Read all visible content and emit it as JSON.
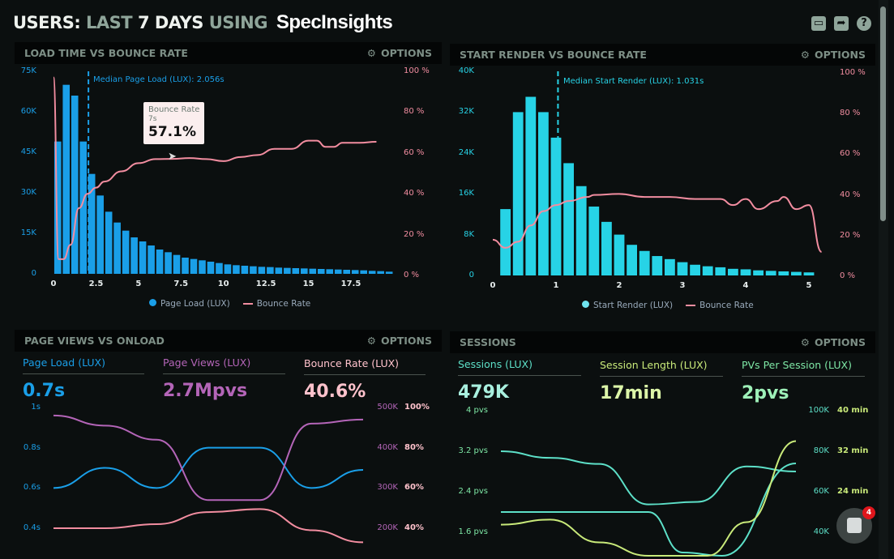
{
  "header": {
    "title_users": "USERS:",
    "title_last": "LAST",
    "title_7days": "7 DAYS",
    "title_using": "USING",
    "brand": "SpecInsights",
    "icons": [
      "monitor-icon",
      "share-icon",
      "help-icon"
    ]
  },
  "scrollbar": {
    "position": 0,
    "visible_fraction": 0.4
  },
  "chat_widget": {
    "badge": "4",
    "icon": "chat-icon"
  },
  "colors": {
    "blue": "#1a9fe8",
    "cyan": "#27d3e6",
    "pink": "#f28da0",
    "purple": "#b465b8",
    "lightpink": "#ffc2cc",
    "teal": "#5de0c8",
    "lime": "#c9ea7a",
    "green": "#7ee8a6"
  },
  "panels": [
    {
      "title": "LOAD TIME VS BOUNCE RATE",
      "options": "OPTIONS"
    },
    {
      "title": "START RENDER VS BOUNCE RATE",
      "options": "OPTIONS"
    },
    {
      "title": "PAGE VIEWS VS ONLOAD",
      "options": "OPTIONS",
      "kpis": [
        {
          "label": "Page Load (LUX)",
          "value": "0.7s"
        },
        {
          "label": "Page Views (LUX)",
          "value": "2.7Mpvs"
        },
        {
          "label": "Bounce Rate (LUX)",
          "value": "40.6%"
        }
      ]
    },
    {
      "title": "SESSIONS",
      "options": "OPTIONS",
      "kpis": [
        {
          "label": "Sessions (LUX)",
          "value": "479K"
        },
        {
          "label": "Session Length (LUX)",
          "value": "17min"
        },
        {
          "label": "PVs Per Session (LUX)",
          "value": "2pvs"
        }
      ]
    }
  ],
  "tooltip": {
    "title": "Bounce Rate",
    "x": "7s",
    "value": "57.1%"
  },
  "chart_data": [
    {
      "type": "bar",
      "annotation": "Median Page Load (LUX): 2.056s",
      "median": 2.056,
      "xticks": [
        "0",
        "2.5",
        "5",
        "7.5",
        "10",
        "12.5",
        "15",
        "17.5"
      ],
      "xlim": [
        0,
        19.75
      ],
      "yticks": [
        "0",
        "15K",
        "30K",
        "45K",
        "60K",
        "75K"
      ],
      "ylim": [
        0,
        75000
      ],
      "y2ticks": [
        "0 %",
        "20 %",
        "40 %",
        "60 %",
        "80 %",
        "100 %"
      ],
      "y2lim": [
        0,
        100
      ],
      "legend": [
        "Page Load (LUX)",
        "Bounce Rate"
      ],
      "bars": {
        "name": "Page Load (LUX)",
        "x_start": 0,
        "x_step": 0.5,
        "values": [
          49000,
          70000,
          66000,
          49000,
          37000,
          29000,
          23000,
          19000,
          16000,
          13500,
          12000,
          10500,
          9000,
          8000,
          7000,
          6000,
          5500,
          5000,
          4500,
          4000,
          3500,
          3200,
          3000,
          2800,
          2600,
          2500,
          2300,
          2200,
          2100,
          2000,
          1900,
          1800,
          1700,
          1600,
          1500,
          1400,
          1300,
          1100,
          1000,
          800
        ]
      },
      "line": {
        "name": "Bounce Rate",
        "points": [
          [
            0,
            97
          ],
          [
            0.3,
            8
          ],
          [
            0.6,
            8
          ],
          [
            1,
            15
          ],
          [
            1.5,
            33
          ],
          [
            2,
            40
          ],
          [
            2.5,
            43
          ],
          [
            3,
            46
          ],
          [
            4,
            51
          ],
          [
            5,
            55
          ],
          [
            6,
            57
          ],
          [
            7,
            57.1
          ],
          [
            8,
            57.5
          ],
          [
            9,
            57
          ],
          [
            10,
            56
          ],
          [
            11,
            58
          ],
          [
            12,
            59
          ],
          [
            13,
            62
          ],
          [
            14,
            62
          ],
          [
            15,
            66
          ],
          [
            15.5,
            66
          ],
          [
            16,
            63
          ],
          [
            16.5,
            63
          ],
          [
            17,
            65
          ],
          [
            18,
            65
          ],
          [
            19,
            65.5
          ]
        ]
      }
    },
    {
      "type": "bar",
      "annotation": "Median Start Render (LUX): 1.031s",
      "median": 1.031,
      "xticks": [
        "0",
        "1",
        "2",
        "3",
        "4",
        "5"
      ],
      "xlim": [
        0,
        5.3
      ],
      "yticks": [
        "0",
        "8K",
        "16K",
        "24K",
        "32K",
        "40K"
      ],
      "ylim": [
        0,
        40000
      ],
      "y2ticks": [
        "0 %",
        "20 %",
        "40 %",
        "60 %",
        "80 %",
        "100 %"
      ],
      "y2lim": [
        0,
        100
      ],
      "legend": [
        "Start Render (LUX)",
        "Bounce Rate"
      ],
      "bars": {
        "name": "Start Render (LUX)",
        "x_start": 0.2,
        "x_step": 0.2,
        "values": [
          13000,
          32000,
          35000,
          32000,
          27000,
          22000,
          17500,
          13500,
          10500,
          8000,
          6000,
          4800,
          3800,
          3200,
          2600,
          2100,
          1800,
          1600,
          1300,
          1200,
          1000,
          900,
          800,
          700,
          600
        ]
      },
      "line": {
        "name": "Bounce Rate",
        "points": [
          [
            0,
            18
          ],
          [
            0.2,
            14
          ],
          [
            0.4,
            17
          ],
          [
            0.6,
            25
          ],
          [
            0.8,
            32
          ],
          [
            1,
            35
          ],
          [
            1.2,
            37
          ],
          [
            1.5,
            39
          ],
          [
            1.6,
            40
          ],
          [
            2,
            40.5
          ],
          [
            2.4,
            39
          ],
          [
            2.8,
            39
          ],
          [
            3.2,
            38
          ],
          [
            3.6,
            38
          ],
          [
            3.8,
            35
          ],
          [
            4,
            38
          ],
          [
            4.2,
            33
          ],
          [
            4.5,
            37
          ],
          [
            4.6,
            39
          ],
          [
            4.8,
            33
          ],
          [
            5,
            35
          ],
          [
            5.2,
            12
          ]
        ]
      }
    },
    {
      "type": "line",
      "xlim": [
        0,
        6
      ],
      "yticks": [
        "0.4s",
        "0.6s",
        "0.8s",
        "1s"
      ],
      "ylim": [
        0.4,
        1.0
      ],
      "y2ticks": [
        "200K",
        "300K",
        "400K",
        "500K"
      ],
      "y2lim": [
        200000,
        500000
      ],
      "y3ticks": [
        "40%",
        "60%",
        "80%",
        "100%"
      ],
      "y3lim": [
        40,
        100
      ],
      "series": [
        {
          "name": "Page Load (LUX)",
          "axis": "y",
          "values": [
            [
              0,
              0.6
            ],
            [
              1,
              0.7
            ],
            [
              2,
              0.6
            ],
            [
              3,
              0.8
            ],
            [
              4,
              0.8
            ],
            [
              5,
              0.6
            ],
            [
              6,
              0.69
            ]
          ]
        },
        {
          "name": "Page Views (LUX)",
          "axis": "y2",
          "values": [
            [
              0,
              480000
            ],
            [
              1,
              455000
            ],
            [
              2,
              420000
            ],
            [
              3,
              270000
            ],
            [
              4,
              270000
            ],
            [
              5,
              460000
            ],
            [
              6,
              470000
            ]
          ]
        },
        {
          "name": "Bounce Rate (LUX)",
          "axis": "y3",
          "values": [
            [
              0,
              40
            ],
            [
              1,
              40
            ],
            [
              2,
              42
            ],
            [
              3,
              48
            ],
            [
              4,
              49.5
            ],
            [
              5,
              39
            ],
            [
              6,
              33
            ]
          ]
        }
      ]
    },
    {
      "type": "line",
      "xlim": [
        0,
        6
      ],
      "yticks": [
        "1.6 pvs",
        "2.4 pvs",
        "3.2 pvs",
        "4 pvs"
      ],
      "ylim": [
        1.6,
        4.0
      ],
      "y2ticks": [
        "40K",
        "60K",
        "80K",
        "100K"
      ],
      "y2lim": [
        40000,
        100000
      ],
      "y3ticks": [
        "24 min",
        "32 min",
        "40 min"
      ],
      "y3lim": [
        16,
        40
      ],
      "series": [
        {
          "name": "PVs Per Session (LUX)",
          "axis": "y",
          "values": [
            [
              0,
              3.2
            ],
            [
              1,
              3.07
            ],
            [
              2,
              2.95
            ],
            [
              3,
              2.15
            ],
            [
              4,
              2.2
            ],
            [
              5,
              2.9
            ],
            [
              6,
              2.8
            ]
          ]
        },
        {
          "name": "Sessions (LUX)",
          "axis": "y2",
          "values": [
            [
              0,
              50000
            ],
            [
              1,
              50000
            ],
            [
              2,
              50000
            ],
            [
              3,
              50000
            ],
            [
              3.7,
              30000
            ],
            [
              4.5,
              26000
            ],
            [
              6,
              74000
            ]
          ]
        },
        {
          "name": "Session Length (LUX)",
          "axis": "y3",
          "values": [
            [
              0,
              17.5
            ],
            [
              1,
              18.5
            ],
            [
              2,
              14
            ],
            [
              3,
              8
            ],
            [
              4.2,
              4
            ],
            [
              5,
              18
            ],
            [
              6,
              34
            ]
          ]
        }
      ]
    }
  ]
}
